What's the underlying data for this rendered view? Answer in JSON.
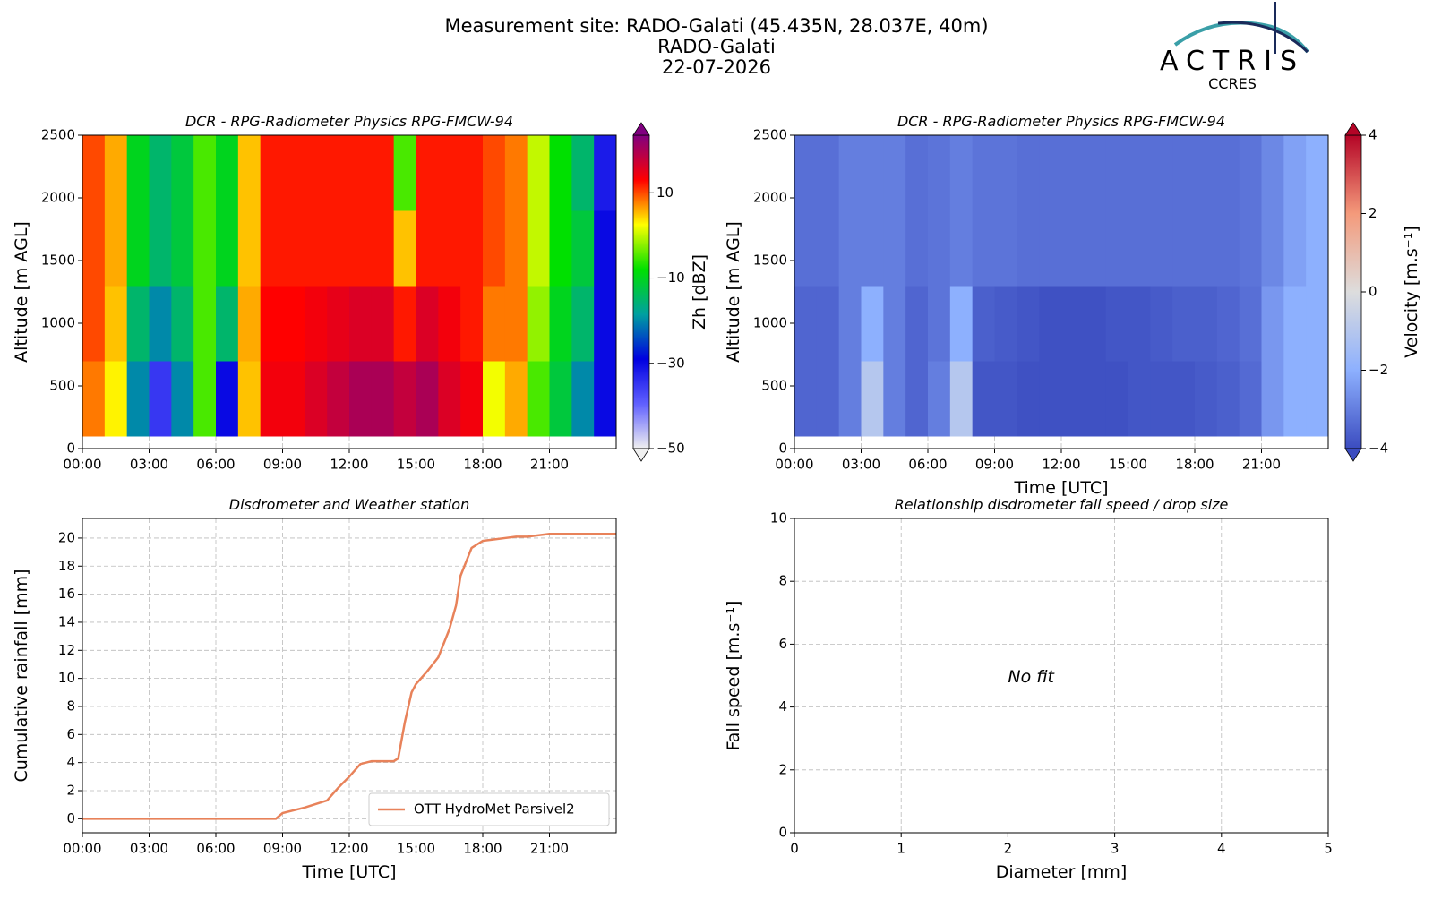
{
  "header": {
    "title_lines": [
      "Measurement site: RADO-Galati (45.435N, 28.037E, 40m)",
      "RADO-Galati",
      "22-07-2026"
    ],
    "logo_text": "ACTRIS",
    "logo_subtext": "CCRES"
  },
  "chart_data": [
    {
      "type": "heatmap",
      "title": "DCR - RPG-Radiometer Physics RPG-FMCW-94",
      "ylabel": "Altitude [m AGL]",
      "xlim": [
        0,
        24
      ],
      "xticks": [
        {
          "value": 0,
          "label": "00:00"
        },
        {
          "value": 3,
          "label": "03:00"
        },
        {
          "value": 6,
          "label": "06:00"
        },
        {
          "value": 9,
          "label": "09:00"
        },
        {
          "value": 12,
          "label": "12:00"
        },
        {
          "value": 15,
          "label": "15:00"
        },
        {
          "value": 18,
          "label": "18:00"
        },
        {
          "value": 21,
          "label": "21:00"
        }
      ],
      "ylim": [
        0,
        2500
      ],
      "yticks": [
        0,
        500,
        1000,
        1500,
        2000,
        2500
      ],
      "grid": true,
      "x_edges": [
        0,
        1,
        2,
        3,
        4,
        5,
        6,
        7,
        8,
        9,
        10,
        11,
        12,
        13,
        14,
        15,
        16,
        17,
        18,
        19,
        20,
        21,
        22,
        23,
        24
      ],
      "y_edges": [
        100,
        700,
        1300,
        1900,
        2500
      ],
      "z": [
        [
          8,
          3,
          -20,
          -35,
          -20,
          -5,
          -30,
          5,
          14,
          14,
          16,
          18,
          20,
          20,
          18,
          20,
          16,
          14,
          2,
          6,
          -5,
          -12,
          -20,
          -30
        ],
        [
          10,
          5,
          -15,
          -20,
          -15,
          -5,
          -15,
          6,
          13,
          13,
          14,
          15,
          16,
          16,
          12,
          16,
          14,
          12,
          8,
          8,
          -2,
          -10,
          -15,
          -30
        ],
        [
          10,
          6,
          -10,
          -15,
          -12,
          -5,
          -10,
          5,
          12,
          12,
          12,
          12,
          12,
          12,
          5,
          12,
          12,
          12,
          10,
          8,
          0,
          -8,
          -12,
          -30
        ],
        [
          10,
          6,
          -10,
          -15,
          -12,
          -5,
          -10,
          5,
          12,
          12,
          12,
          12,
          12,
          12,
          -5,
          12,
          12,
          12,
          10,
          8,
          0,
          -8,
          -15,
          -32
        ]
      ],
      "colorbar": {
        "label": "Zh [dBZ]",
        "lim": [
          -50,
          23.5
        ],
        "ticks": [
          {
            "value": 10,
            "label": "10"
          },
          {
            "value": -10,
            "label": "−10"
          },
          {
            "value": -30,
            "label": "−30"
          },
          {
            "value": -50,
            "label": "−50"
          }
        ],
        "colors": [
          "#f0f0f0",
          "#6060ff",
          "#0000e0",
          "#00a0a0",
          "#00e000",
          "#ffff00",
          "#ff0000",
          "#800080"
        ]
      }
    },
    {
      "type": "heatmap",
      "title": "DCR - RPG-Radiometer Physics RPG-FMCW-94",
      "ylabel": "Altitude [m AGL]",
      "xlabel": "Time [UTC]",
      "xlim": [
        0,
        24
      ],
      "xticks": [
        {
          "value": 0,
          "label": "00:00"
        },
        {
          "value": 3,
          "label": "03:00"
        },
        {
          "value": 6,
          "label": "06:00"
        },
        {
          "value": 9,
          "label": "09:00"
        },
        {
          "value": 12,
          "label": "12:00"
        },
        {
          "value": 15,
          "label": "15:00"
        },
        {
          "value": 18,
          "label": "18:00"
        },
        {
          "value": 21,
          "label": "21:00"
        }
      ],
      "ylim": [
        0,
        2500
      ],
      "yticks": [
        0,
        500,
        1000,
        1500,
        2000,
        2500
      ],
      "grid": true,
      "x_edges": [
        0,
        1,
        2,
        3,
        4,
        5,
        6,
        7,
        8,
        9,
        10,
        11,
        12,
        13,
        14,
        15,
        16,
        17,
        18,
        19,
        20,
        21,
        22,
        23,
        24
      ],
      "y_edges": [
        100,
        700,
        1300,
        1900,
        2500
      ],
      "z": [
        [
          -3.5,
          -3.5,
          -3,
          -1,
          -3,
          -3.5,
          -3,
          -1,
          -3.8,
          -3.8,
          -3.9,
          -3.9,
          -3.9,
          -3.9,
          -3.9,
          -3.8,
          -3.8,
          -3.8,
          -3.7,
          -3.6,
          -3.4,
          -2.5,
          -2,
          -2
        ],
        [
          -3.5,
          -3.5,
          -3,
          -2,
          -3,
          -3.5,
          -3.2,
          -2,
          -3.6,
          -3.7,
          -3.8,
          -3.9,
          -3.9,
          -3.9,
          -3.8,
          -3.8,
          -3.7,
          -3.6,
          -3.6,
          -3.5,
          -3.3,
          -2.5,
          -2,
          -2
        ],
        [
          -3.3,
          -3.3,
          -3,
          -3,
          -3,
          -3.3,
          -3.2,
          -3,
          -3.2,
          -3.2,
          -3.3,
          -3.3,
          -3.3,
          -3.3,
          -3.3,
          -3.3,
          -3.3,
          -3.3,
          -3.3,
          -3.3,
          -3.2,
          -2.8,
          -2.3,
          -2
        ],
        [
          -3.3,
          -3.3,
          -3,
          -3,
          -3,
          -3.3,
          -3.2,
          -3,
          -3.2,
          -3.2,
          -3.3,
          -3.3,
          -3.3,
          -3.3,
          -3.3,
          -3.3,
          -3.3,
          -3.3,
          -3.3,
          -3.3,
          -3.2,
          -2.8,
          -2.3,
          -2
        ]
      ],
      "colorbar": {
        "label": "Velocity [m.s⁻¹]",
        "lim": [
          -4,
          4
        ],
        "ticks": [
          {
            "value": 4,
            "label": "4"
          },
          {
            "value": 2,
            "label": "2"
          },
          {
            "value": 0,
            "label": "0"
          },
          {
            "value": -2,
            "label": "−2"
          },
          {
            "value": -4,
            "label": "−4"
          }
        ],
        "colors": [
          "#3b4cc0",
          "#8db0fe",
          "#dddddd",
          "#f49a7b",
          "#b40426"
        ]
      }
    },
    {
      "type": "line",
      "title": "Disdrometer and Weather station",
      "xlabel": "Time [UTC]",
      "ylabel": "Cumulative rainfall [mm]",
      "xlim": [
        0,
        24
      ],
      "xticks": [
        {
          "value": 0,
          "label": "00:00"
        },
        {
          "value": 3,
          "label": "03:00"
        },
        {
          "value": 6,
          "label": "06:00"
        },
        {
          "value": 9,
          "label": "09:00"
        },
        {
          "value": 12,
          "label": "12:00"
        },
        {
          "value": 15,
          "label": "15:00"
        },
        {
          "value": 18,
          "label": "18:00"
        },
        {
          "value": 21,
          "label": "21:00"
        }
      ],
      "ylim": [
        -1,
        21.4
      ],
      "yticks": [
        0,
        2,
        4,
        6,
        8,
        10,
        12,
        14,
        16,
        18,
        20
      ],
      "grid": true,
      "legend": "lower right",
      "x": [
        0,
        8.7,
        9,
        10,
        11,
        11.5,
        12,
        12.5,
        13,
        14,
        14.2,
        14.5,
        14.8,
        15,
        15.5,
        16,
        16.5,
        16.8,
        17,
        17.5,
        18,
        18.5,
        19,
        19.5,
        20,
        21,
        22,
        24
      ],
      "series": [
        {
          "name": "OTT HydroMet Parsivel2",
          "color": "#e8825a",
          "values": [
            0,
            0,
            0.4,
            0.8,
            1.3,
            2.2,
            3.0,
            3.9,
            4.1,
            4.1,
            4.3,
            6.9,
            9.0,
            9.6,
            10.5,
            11.5,
            13.5,
            15.2,
            17.3,
            19.3,
            19.8,
            19.9,
            20.0,
            20.1,
            20.1,
            20.3,
            20.3,
            20.3
          ]
        }
      ]
    },
    {
      "type": "scatter",
      "title": "Relationship disdrometer fall speed / drop size",
      "xlabel": "Diameter [mm]",
      "ylabel": "Fall speed [m.s⁻¹]",
      "xlim": [
        0,
        5
      ],
      "xticks": [
        0,
        1,
        2,
        3,
        4,
        5
      ],
      "ylim": [
        0,
        10
      ],
      "yticks": [
        0,
        2,
        4,
        6,
        8,
        10
      ],
      "grid": true,
      "annotation": "No fit"
    }
  ]
}
